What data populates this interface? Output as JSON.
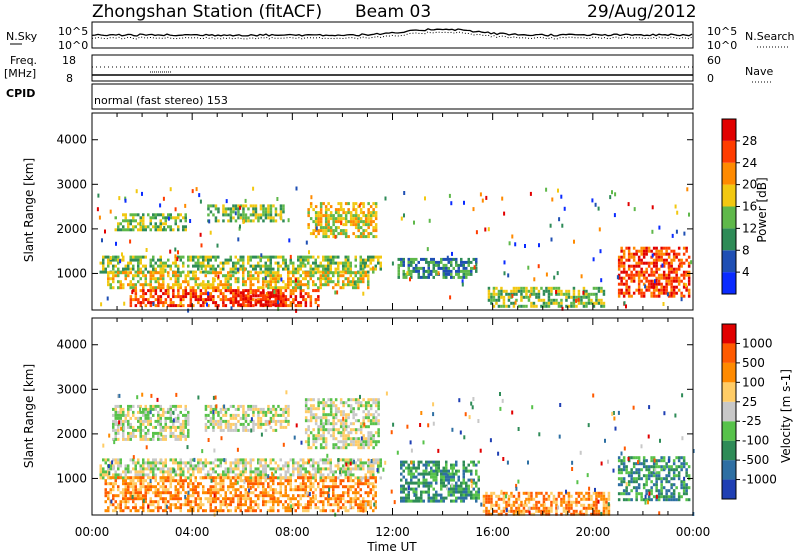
{
  "header": {
    "station": "Zhongshan Station (fitACF)",
    "beam": "Beam 03",
    "date": "29/Aug/2012"
  },
  "status_panels": {
    "nsky_label": "N.Sky",
    "nsearch_label": "N.Search",
    "noise_ticks": [
      "10^5",
      "10^0"
    ],
    "freq_label": "Freq.",
    "freq_unit": "[MHz]",
    "freq_ticks": [
      "18",
      "8"
    ],
    "nave_label": "Nave",
    "nave_ticks": [
      "60",
      "0"
    ],
    "cpid_label": "CPID",
    "cpid_text": "normal (fast stereo) 153"
  },
  "chart_data": [
    {
      "type": "heatmap",
      "parameter": "Power",
      "ylabel": "Slant Range [km]",
      "xlabel": "Time UT",
      "xticks": [
        "00:00",
        "04:00",
        "08:00",
        "12:00",
        "16:00",
        "20:00",
        "00:00"
      ],
      "x_hours": [
        0,
        4,
        8,
        12,
        16,
        20,
        24
      ],
      "yticks": [
        1000,
        2000,
        3000,
        4000
      ],
      "ylim": [
        180,
        4600
      ],
      "colorbar": {
        "label": "Power [dB]",
        "ticks": [
          "4",
          "8",
          "12",
          "16",
          "20",
          "24",
          "28"
        ],
        "colors": [
          "#0a2bff",
          "#1f4fb4",
          "#2e8b57",
          "#5fb84a",
          "#f2c811",
          "#ff8a00",
          "#ff3c00",
          "#e10000"
        ]
      },
      "echo_regions": [
        {
          "t": [
            0.9,
            3.7
          ],
          "r": [
            1950,
            2350
          ],
          "level": 3
        },
        {
          "t": [
            4.6,
            7.6
          ],
          "r": [
            2150,
            2550
          ],
          "level": 3
        },
        {
          "t": [
            8.6,
            11.3
          ],
          "r": [
            1800,
            2600
          ],
          "level": 4
        },
        {
          "t": [
            0.3,
            11.5
          ],
          "r": [
            1050,
            1400
          ],
          "level": 3
        },
        {
          "t": [
            0.6,
            11.0
          ],
          "r": [
            650,
            1050
          ],
          "level": 4
        },
        {
          "t": [
            1.5,
            9.0
          ],
          "r": [
            250,
            650
          ],
          "level": 6
        },
        {
          "t": [
            5.5,
            7.6
          ],
          "r": [
            300,
            600
          ],
          "level": 7
        },
        {
          "t": [
            12.2,
            15.3
          ],
          "r": [
            900,
            1350
          ],
          "level": 2
        },
        {
          "t": [
            15.8,
            20.4
          ],
          "r": [
            250,
            700
          ],
          "level": 3
        },
        {
          "t": [
            21.0,
            23.8
          ],
          "r": [
            500,
            1600
          ],
          "level": 6
        }
      ]
    },
    {
      "type": "heatmap",
      "parameter": "Velocity",
      "ylabel": "Slant Range [km]",
      "xlabel": "Time UT",
      "xticks": [
        "00:00",
        "04:00",
        "08:00",
        "12:00",
        "16:00",
        "20:00",
        "00:00"
      ],
      "x_hours": [
        0,
        4,
        8,
        12,
        16,
        20,
        24
      ],
      "yticks": [
        1000,
        2000,
        3000,
        4000
      ],
      "ylim": [
        180,
        4600
      ],
      "colorbar": {
        "label": "Velocity [m s-1]",
        "ticks": [
          "1000",
          "500",
          "100",
          "25",
          "-25",
          "-100",
          "-500",
          "-1000"
        ],
        "colors": [
          "#1f3fb3",
          "#2e6fa3",
          "#2e8b57",
          "#57c24a",
          "#c8c8c8",
          "#ffcc66",
          "#ff8a00",
          "#ff5a00",
          "#e10000"
        ]
      },
      "echo_regions": [
        {
          "t": [
            0.8,
            3.8
          ],
          "r": [
            1850,
            2650
          ],
          "level": 4
        },
        {
          "t": [
            4.5,
            7.8
          ],
          "r": [
            2050,
            2650
          ],
          "level": 4
        },
        {
          "t": [
            8.5,
            11.4
          ],
          "r": [
            1700,
            2800
          ],
          "level": 4
        },
        {
          "t": [
            0.3,
            11.5
          ],
          "r": [
            1000,
            1450
          ],
          "level": 4
        },
        {
          "t": [
            0.5,
            11.3
          ],
          "r": [
            300,
            1050
          ],
          "level": 6
        },
        {
          "t": [
            12.3,
            15.4
          ],
          "r": [
            500,
            1400
          ],
          "level": 2
        },
        {
          "t": [
            15.6,
            20.6
          ],
          "r": [
            200,
            700
          ],
          "level": 6
        },
        {
          "t": [
            21.0,
            23.8
          ],
          "r": [
            500,
            1500
          ],
          "level": 2
        }
      ]
    }
  ]
}
